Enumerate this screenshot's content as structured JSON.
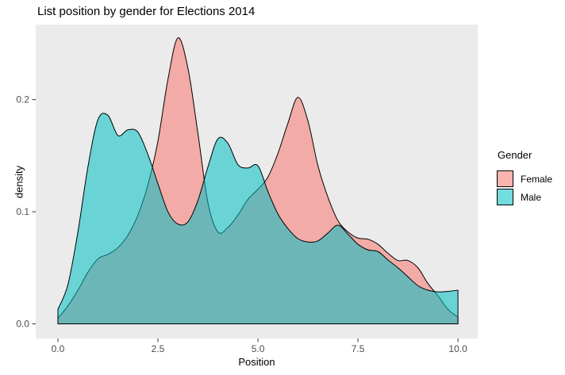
{
  "title": "List position by gender for Elections 2014",
  "chart_data": {
    "type": "area",
    "subtype": "density",
    "title": "List position by gender for Elections 2014",
    "xlabel": "Position",
    "ylabel": "density",
    "x_ticks": [
      0.0,
      2.5,
      5.0,
      7.5,
      10.0
    ],
    "x_tick_labels": [
      "0.0",
      "2.5",
      "5.0",
      "7.5",
      "10.0"
    ],
    "y_ticks": [
      0.0,
      0.1,
      0.2
    ],
    "y_tick_labels": [
      "0.0",
      "0.1",
      "0.2"
    ],
    "xlim": [
      -0.555,
      10.494
    ],
    "ylim": [
      -0.0131,
      0.2669
    ],
    "grid": false,
    "panel_bg": "#EBEBEB",
    "outline_color": "#000000",
    "tick_color": "#333333",
    "tick_label_color": "#4D4D4D",
    "fill_alpha": 0.55,
    "legend": {
      "title": "Gender",
      "position": "right",
      "entries": [
        {
          "label": "Female",
          "color": "#F8766D"
        },
        {
          "label": "Male",
          "color": "#00BFC4"
        }
      ]
    },
    "series": [
      {
        "name": "Female",
        "fill": "#F8766D",
        "x": [
          0,
          0.25,
          0.5,
          0.75,
          1,
          1.25,
          1.5,
          1.75,
          2,
          2.25,
          2.5,
          2.75,
          3,
          3.25,
          3.5,
          3.75,
          4,
          4.25,
          4.5,
          4.75,
          5,
          5.25,
          5.5,
          5.75,
          6,
          6.25,
          6.5,
          6.75,
          7,
          7.25,
          7.5,
          7.75,
          8,
          8.25,
          8.5,
          8.75,
          9,
          9.25,
          9.5,
          9.75,
          10
        ],
        "y": [
          0.005,
          0.016,
          0.03,
          0.046,
          0.058,
          0.062,
          0.068,
          0.079,
          0.097,
          0.124,
          0.163,
          0.218,
          0.255,
          0.228,
          0.17,
          0.108,
          0.082,
          0.086,
          0.097,
          0.111,
          0.12,
          0.131,
          0.152,
          0.179,
          0.202,
          0.181,
          0.141,
          0.113,
          0.092,
          0.082,
          0.0765,
          0.0755,
          0.071,
          0.063,
          0.0565,
          0.0565,
          0.05,
          0.036,
          0.025,
          0.013,
          0.006
        ]
      },
      {
        "name": "Male",
        "fill": "#00BFC4",
        "x": [
          0,
          0.25,
          0.5,
          0.75,
          1,
          1.25,
          1.5,
          1.75,
          2,
          2.25,
          2.5,
          2.75,
          3,
          3.25,
          3.5,
          3.75,
          4,
          4.25,
          4.5,
          4.75,
          5,
          5.25,
          5.5,
          5.75,
          6,
          6.25,
          6.5,
          6.75,
          7,
          7.25,
          7.5,
          7.75,
          8,
          8.25,
          8.5,
          8.75,
          9,
          9.25,
          9.5,
          9.75,
          10
        ],
        "y": [
          0.013,
          0.035,
          0.082,
          0.14,
          0.182,
          0.186,
          0.168,
          0.173,
          0.171,
          0.151,
          0.125,
          0.1,
          0.089,
          0.091,
          0.11,
          0.14,
          0.165,
          0.161,
          0.142,
          0.139,
          0.141,
          0.118,
          0.098,
          0.085,
          0.076,
          0.073,
          0.074,
          0.081,
          0.088,
          0.08,
          0.071,
          0.066,
          0.0645,
          0.057,
          0.05,
          0.042,
          0.034,
          0.03,
          0.0285,
          0.029,
          0.03
        ]
      }
    ]
  }
}
